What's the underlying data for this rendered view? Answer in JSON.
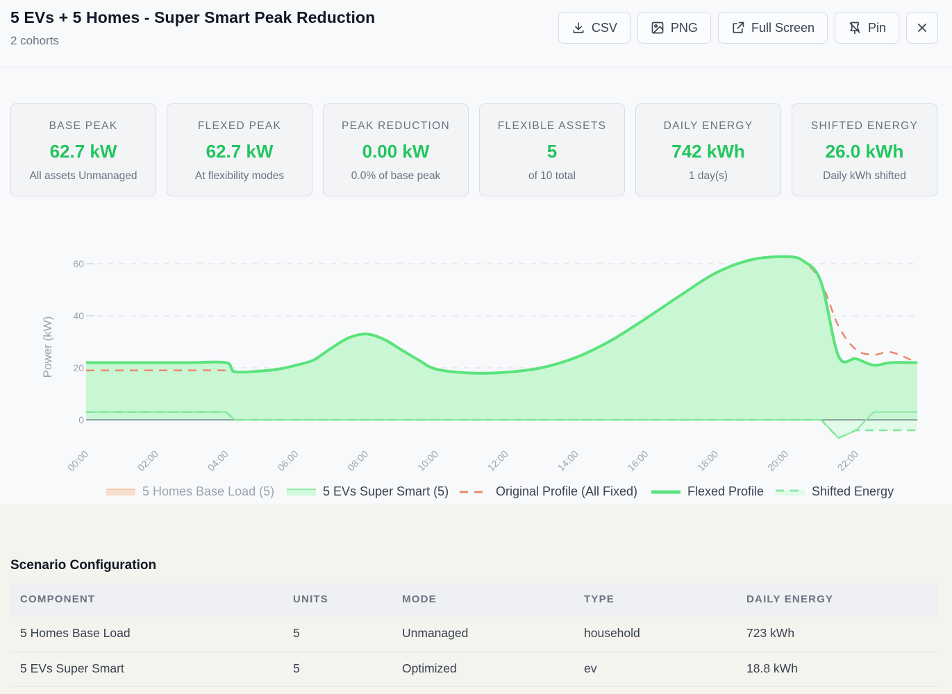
{
  "header": {
    "title": "5 EVs + 5 Homes - Super Smart Peak Reduction",
    "subtitle": "2 cohorts",
    "buttons": {
      "csv": "CSV",
      "png": "PNG",
      "fullscreen": "Full Screen",
      "pin": "Pin"
    },
    "icons": [
      "download-icon",
      "image-icon",
      "external-link-icon",
      "pin-icon",
      "close-icon"
    ]
  },
  "cards": [
    {
      "label": "BASE PEAK",
      "value": "62.7 kW",
      "sub": "All assets Unmanaged"
    },
    {
      "label": "FLEXED PEAK",
      "value": "62.7 kW",
      "sub": "At flexibility modes"
    },
    {
      "label": "PEAK REDUCTION",
      "value": "0.00 kW",
      "sub": "0.0% of base peak"
    },
    {
      "label": "FLEXIBLE ASSETS",
      "value": "5",
      "sub": "of 10 total"
    },
    {
      "label": "DAILY ENERGY",
      "value": "742 kWh",
      "sub": "1 day(s)"
    },
    {
      "label": "SHIFTED ENERGY",
      "value": "26.0 kWh",
      "sub": "Daily kWh shifted"
    }
  ],
  "colors": {
    "accent_green": "#22c55e",
    "flexed_line": "#5be37b",
    "area_fill": "#c9f7d4",
    "original_dash": "#e98a6b",
    "base_load_swatch": "#f4c9b0"
  },
  "chart_data": {
    "type": "area",
    "ylabel": "Power (kW)",
    "ylim": [
      0,
      60
    ],
    "yticks": [
      0,
      20,
      40,
      60
    ],
    "x_tick_labels": [
      "00:00",
      "02:00",
      "04:00",
      "06:00",
      "08:00",
      "10:00",
      "12:00",
      "14:00",
      "16:00",
      "18:00",
      "20:00",
      "22:00"
    ],
    "x": [
      "00:00",
      "01:00",
      "02:00",
      "03:00",
      "04:00",
      "04:15",
      "05:00",
      "05:30",
      "06:00",
      "06:30",
      "07:00",
      "07:30",
      "08:00",
      "08:30",
      "09:00",
      "09:30",
      "10:00",
      "11:00",
      "12:00",
      "13:00",
      "14:00",
      "15:00",
      "16:00",
      "17:00",
      "18:00",
      "19:00",
      "20:00",
      "20:30",
      "21:00",
      "21:30",
      "22:00",
      "22:30",
      "23:00",
      "23:45"
    ],
    "legend_position": "bottom",
    "grid": true,
    "series": [
      {
        "name": "5 Homes Base Load (5)",
        "style": "area",
        "values": [
          19.0,
          19.0,
          19.0,
          19.0,
          19.0,
          18.5,
          18.8,
          19.5,
          21.0,
          23.0,
          27.5,
          31.5,
          33.0,
          31.0,
          27.0,
          23.0,
          19.5,
          18.0,
          18.3,
          20.0,
          24.0,
          30.5,
          39.0,
          48.0,
          56.5,
          61.5,
          62.7,
          61.0,
          53.0,
          42.0,
          30.0,
          27.0,
          24.5,
          25.0
        ]
      },
      {
        "name": "5 EVs Super Smart (5)",
        "style": "area",
        "values": [
          3.0,
          3.0,
          3.0,
          3.0,
          3.0,
          0,
          0,
          0,
          0,
          0,
          0,
          0,
          0,
          0,
          0,
          0,
          0,
          0,
          0,
          0,
          0,
          0,
          0,
          0,
          0,
          0,
          0,
          0,
          0,
          -7.0,
          -4.0,
          3.0,
          3.0,
          3.0
        ]
      },
      {
        "name": "Original Profile (All Fixed)",
        "style": "dashed",
        "note_hidden": false,
        "values": [
          19.0,
          19.0,
          19.0,
          19.0,
          19.0,
          18.5,
          18.8,
          19.5,
          21.0,
          23.0,
          27.5,
          31.5,
          33.0,
          31.0,
          27.0,
          23.0,
          19.5,
          18.0,
          18.3,
          20.0,
          24.0,
          30.5,
          39.0,
          48.0,
          56.5,
          61.5,
          62.7,
          61.0,
          53.0,
          36.0,
          27.0,
          25.0,
          26.0,
          22.0
        ]
      },
      {
        "name": "Flexed Profile",
        "style": "solid",
        "values": [
          22.0,
          22.0,
          22.0,
          22.0,
          22.0,
          18.5,
          18.8,
          19.5,
          21.0,
          23.0,
          27.5,
          31.5,
          33.0,
          31.0,
          27.0,
          23.0,
          19.5,
          18.0,
          18.3,
          20.0,
          24.0,
          30.5,
          39.0,
          48.0,
          56.5,
          61.5,
          62.7,
          61.0,
          53.0,
          24.5,
          23.5,
          21.0,
          22.0,
          22.0
        ]
      },
      {
        "name": "Shifted Energy",
        "style": "dashed-area",
        "values": [
          3.0,
          3.0,
          3.0,
          3.0,
          3.0,
          0,
          0,
          0,
          0,
          0,
          0,
          0,
          0,
          0,
          0,
          0,
          0,
          0,
          0,
          0,
          0,
          0,
          0,
          0,
          0,
          0,
          0,
          0,
          0,
          -7.0,
          -4.0,
          -4.0,
          -4.0,
          -4.0
        ]
      }
    ]
  },
  "config": {
    "title": "Scenario Configuration",
    "columns": [
      "COMPONENT",
      "UNITS",
      "MODE",
      "TYPE",
      "DAILY ENERGY"
    ],
    "rows": [
      [
        "5 Homes Base Load",
        "5",
        "Unmanaged",
        "household",
        "723 kWh"
      ],
      [
        "5 EVs Super Smart",
        "5",
        "Optimized",
        "ev",
        "18.8 kWh"
      ]
    ]
  }
}
